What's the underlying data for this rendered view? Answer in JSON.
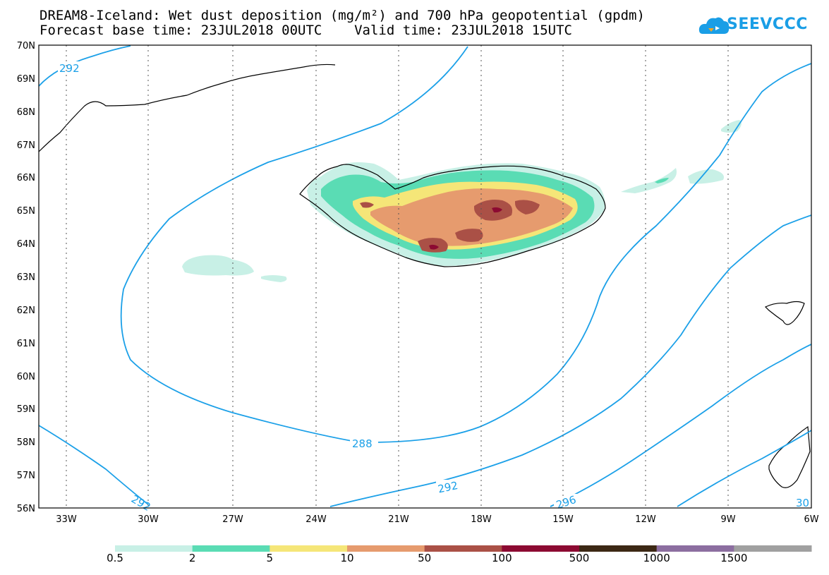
{
  "title_line1": "DREAM8-Iceland: Wet dust deposition (mg/m²) and 700 hPa geopotential (gpdm)",
  "title_line2": "Forecast base time: 23JUL2018 00UTC    Valid time: 23JUL2018 15UTC",
  "logo_text": "SEEVCCC",
  "lat_labels": [
    "70N",
    "69N",
    "68N",
    "67N",
    "66N",
    "65N",
    "64N",
    "63N",
    "62N",
    "61N",
    "60N",
    "59N",
    "58N",
    "57N",
    "56N"
  ],
  "lon_labels": [
    "33W",
    "30W",
    "27W",
    "24W",
    "21W",
    "18W",
    "15W",
    "12W",
    "9W",
    "6W"
  ],
  "contour_labels": [
    "292",
    "288",
    "292",
    "296",
    "292",
    "30"
  ],
  "colorbar": {
    "colors": [
      "#c8f0e6",
      "#5adcb4",
      "#f5e678",
      "#e69b6e",
      "#aa5046",
      "#8c0a32",
      "#3c2814",
      "#8c6ea0",
      "#a0a0a0"
    ],
    "labels": [
      "0.5",
      "2",
      "5",
      "10",
      "50",
      "100",
      "500",
      "1000",
      "1500"
    ]
  }
}
